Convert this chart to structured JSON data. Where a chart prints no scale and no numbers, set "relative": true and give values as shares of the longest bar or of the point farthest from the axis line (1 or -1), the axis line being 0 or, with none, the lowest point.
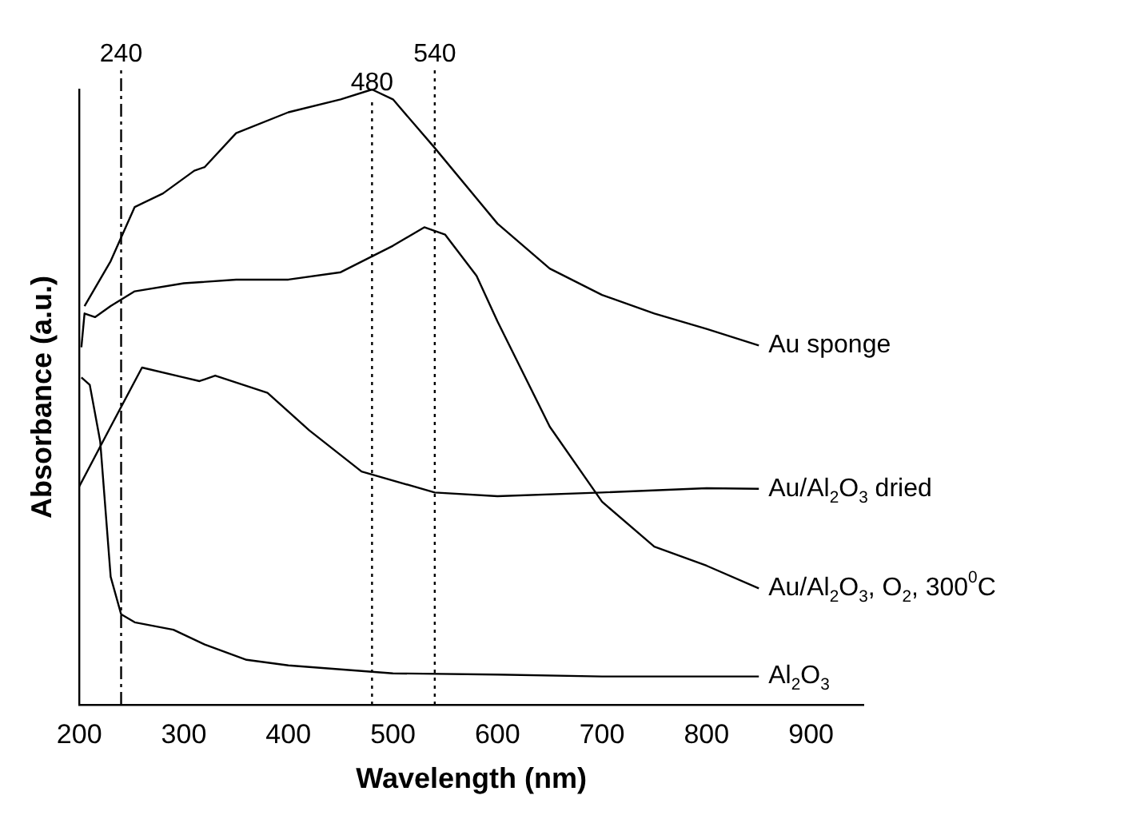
{
  "chart_data": {
    "type": "line",
    "relative": true,
    "xlabel": "Wavelength (nm)",
    "ylabel": "Absorbance (a.u.)",
    "xlim": [
      200,
      950
    ],
    "xticks": [
      200,
      300,
      400,
      500,
      600,
      700,
      800,
      900
    ],
    "grid": false,
    "legend": false,
    "marker": "none",
    "line_style": "solid",
    "series": [
      {
        "name": "Au sponge",
        "color": "#000000",
        "x": [
          205,
          230,
          253,
          280,
          310,
          320,
          350,
          400,
          450,
          480,
          500,
          540,
          600,
          650,
          700,
          750,
          800,
          850
        ],
        "values": [
          0.648,
          0.721,
          0.809,
          0.831,
          0.868,
          0.874,
          0.929,
          0.963,
          0.984,
          1,
          0.984,
          0.905,
          0.782,
          0.709,
          0.666,
          0.636,
          0.611,
          0.584
        ]
      },
      {
        "name": "Au/Al$_{2}$O$_{3}$ dried",
        "color": "#000000",
        "x": [
          200,
          230,
          260,
          300,
          315,
          330,
          380,
          420,
          470,
          540,
          600,
          700,
          800,
          850
        ],
        "values": [
          0.355,
          0.452,
          0.548,
          0.532,
          0.526,
          0.535,
          0.507,
          0.446,
          0.379,
          0.345,
          0.339,
          0.345,
          0.352,
          0.351
        ]
      },
      {
        "name": "Au/Al$_{2}$O$_{3}$, O$_{2}$, 300$^{0}$C",
        "color": "#000000",
        "x": [
          202,
          205,
          215,
          230,
          253,
          300,
          350,
          400,
          450,
          500,
          530,
          550,
          580,
          600,
          650,
          700,
          750,
          800,
          850
        ],
        "values": [
          0.581,
          0.636,
          0.63,
          0.648,
          0.672,
          0.685,
          0.691,
          0.691,
          0.703,
          0.746,
          0.776,
          0.764,
          0.697,
          0.623,
          0.452,
          0.33,
          0.257,
          0.226,
          0.189
        ]
      },
      {
        "name": "Al$_{2}$O$_{3}$",
        "color": "#000000",
        "x": [
          202,
          210,
          220,
          230,
          240,
          253,
          290,
          320,
          360,
          400,
          500,
          600,
          700,
          850
        ],
        "values": [
          0.532,
          0.52,
          0.428,
          0.208,
          0.147,
          0.134,
          0.122,
          0.098,
          0.073,
          0.064,
          0.051,
          0.049,
          0.046,
          0.046
        ]
      }
    ],
    "ref_lines": [
      {
        "axis": "x",
        "value": 240,
        "label": "240",
        "line_style": "dashdot",
        "color": "#000000"
      },
      {
        "axis": "x",
        "value": 480,
        "label": "480",
        "line_style": "dotted",
        "color": "#000000"
      },
      {
        "axis": "x",
        "value": 540,
        "label": "540",
        "line_style": "dotted",
        "color": "#000000"
      }
    ]
  }
}
